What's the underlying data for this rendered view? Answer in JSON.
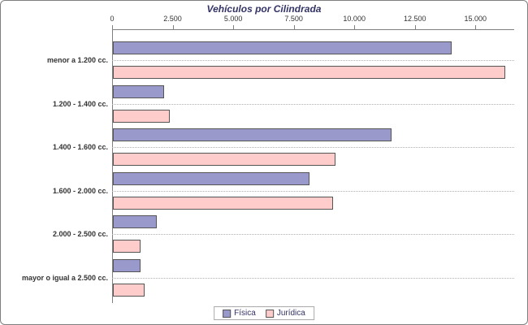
{
  "chart_data": {
    "type": "bar",
    "orientation": "horizontal",
    "title": "Vehículos por Cilindrada",
    "categories": [
      "menor a 1.200 cc.",
      "1.200 - 1.400 cc.",
      "1.400 - 1.600 cc.",
      "1.600 - 2.000 cc.",
      "2.000 - 2.500 cc.",
      "mayor o igual a 2.500 cc."
    ],
    "series": [
      {
        "name": "Física",
        "color": "#9999cc",
        "values": [
          14000,
          2100,
          11500,
          8100,
          1800,
          1150
        ]
      },
      {
        "name": "Jurídica",
        "color": "#ffcccc",
        "values": [
          16200,
          2350,
          9200,
          9100,
          1150,
          1300
        ]
      }
    ],
    "axis_ticks": [
      "0",
      "2.500",
      "5.000",
      "7.500",
      "10.000",
      "12.500",
      "15.000"
    ],
    "axis_tick_values": [
      0,
      2500,
      5000,
      7500,
      10000,
      12500,
      15000
    ],
    "axis_max": 16600,
    "xlabel": "",
    "ylabel": "",
    "legend_position": "bottom",
    "grid": "dotted-category-lines",
    "colors": {
      "title_text": "#333366",
      "legend_text": "#333366",
      "axis_line": "#808080"
    }
  }
}
